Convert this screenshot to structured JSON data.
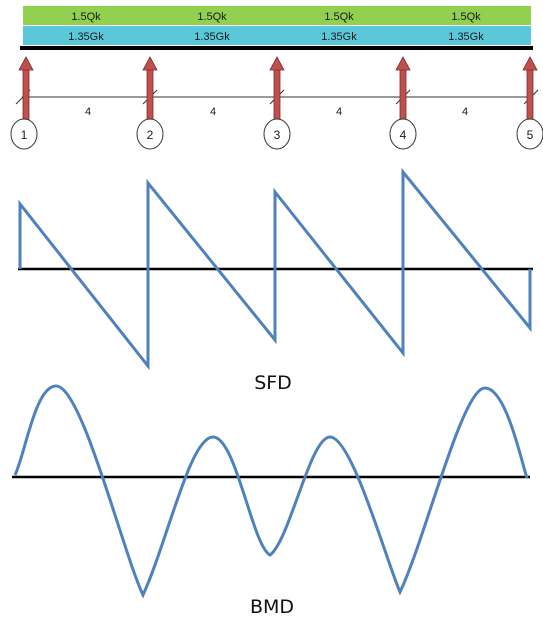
{
  "loads": {
    "live": {
      "labels": [
        "1.5Qk",
        "1.5Qk",
        "1.5Qk",
        "1.5Qk"
      ],
      "color": "#92d050"
    },
    "dead": {
      "labels": [
        "1.35Gk",
        "1.35Gk",
        "1.35Gk",
        "1.35Gk"
      ],
      "color": "#5bc8da"
    }
  },
  "spans": [
    "4",
    "4",
    "4",
    "4"
  ],
  "supports": [
    "1",
    "2",
    "3",
    "4",
    "5"
  ],
  "reaction_color": "#c0504d",
  "curve_color": "#4f81bd",
  "sfd": {
    "caption": "SFD"
  },
  "bmd": {
    "caption": "BMD"
  }
}
